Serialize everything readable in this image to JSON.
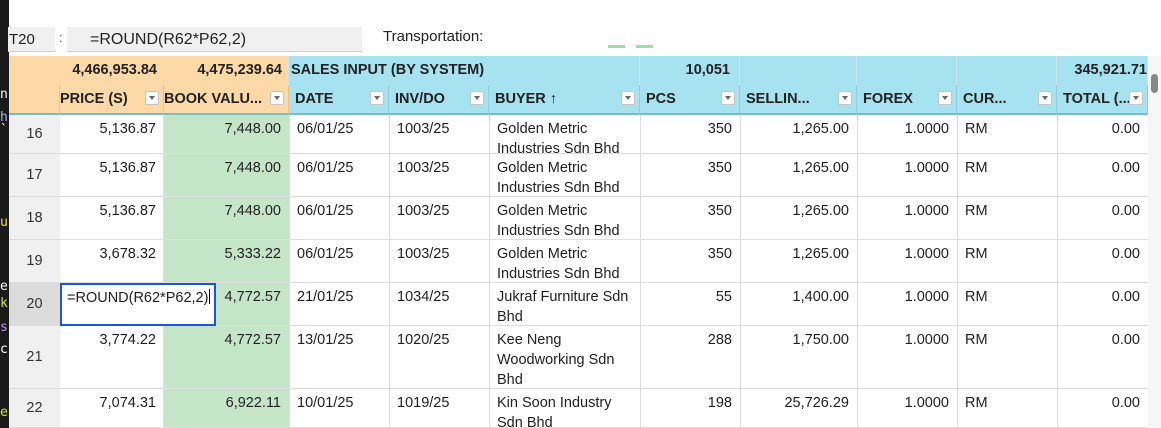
{
  "left_strip": [
    {
      "text": "n",
      "color": "#ffffff"
    },
    {
      "text": "h",
      "color": "#9ab8ff"
    },
    {
      "text": "`",
      "color": "#ffffff"
    },
    {
      "text": "u",
      "color": "#f4e04d"
    },
    {
      "text": "e",
      "color": "#ffffff"
    },
    {
      "text": "k",
      "color": "#c5f000"
    },
    {
      "text": "s",
      "color": "#c98bff"
    },
    {
      "text": "c",
      "color": "#ffffff"
    },
    {
      "text": "e",
      "color": "#c5f000"
    }
  ],
  "toolbar": {
    "name_box": "T20",
    "separator": ":",
    "formula": "=ROUND(R62*P62,2)",
    "transport_label": "Transportation:"
  },
  "summary": {
    "price_total": "4,466,953.84",
    "book_total": "4,475,239.64",
    "section_title": "SALES INPUT (BY SYSTEM)",
    "pcs_total": "10,051",
    "grand_total": "345,921.71"
  },
  "headers": [
    {
      "label": "PRICE (S)"
    },
    {
      "label": "BOOK VALU..."
    },
    {
      "label": "DATE"
    },
    {
      "label": "INV/DO"
    },
    {
      "label": "BUYER ↑"
    },
    {
      "label": "PCS"
    },
    {
      "label": "SELLIN..."
    },
    {
      "label": "FOREX"
    },
    {
      "label": "CUR..."
    },
    {
      "label": "TOTAL (..."
    }
  ],
  "rows": [
    {
      "row": "16",
      "price": "5,136.87",
      "book": "7,448.00",
      "date": "06/01/25",
      "inv": "1003/25",
      "buyer": [
        "Golden Metric",
        "Industries Sdn Bhd"
      ],
      "pcs": "350",
      "selling": "1,265.00",
      "forex": "1.0000",
      "currency": "RM",
      "total": "0.00"
    },
    {
      "row": "17",
      "price": "5,136.87",
      "book": "7,448.00",
      "date": "06/01/25",
      "inv": "1003/25",
      "buyer": [
        "Golden Metric",
        "Industries Sdn Bhd"
      ],
      "pcs": "350",
      "selling": "1,265.00",
      "forex": "1.0000",
      "currency": "RM",
      "total": "0.00"
    },
    {
      "row": "18",
      "price": "5,136.87",
      "book": "7,448.00",
      "date": "06/01/25",
      "inv": "1003/25",
      "buyer": [
        "Golden Metric",
        "Industries Sdn Bhd"
      ],
      "pcs": "350",
      "selling": "1,265.00",
      "forex": "1.0000",
      "currency": "RM",
      "total": "0.00"
    },
    {
      "row": "19",
      "price": "3,678.32",
      "book": "5,333.22",
      "date": "06/01/25",
      "inv": "1003/25",
      "buyer": [
        "Golden Metric",
        "Industries Sdn Bhd"
      ],
      "pcs": "350",
      "selling": "1,265.00",
      "forex": "1.0000",
      "currency": "RM",
      "total": "0.00"
    },
    {
      "row": "20",
      "price": "",
      "book": "4,772.57",
      "date": "21/01/25",
      "inv": "1034/25",
      "buyer": [
        "Jukraf Furniture Sdn",
        "Bhd"
      ],
      "pcs": "55",
      "selling": "1,400.00",
      "forex": "1.0000",
      "currency": "RM",
      "total": "0.00"
    },
    {
      "row": "21",
      "price": "3,774.22",
      "book": "4,772.57",
      "date": "13/01/25",
      "inv": "1020/25",
      "buyer": [
        "Kee Neng",
        "Woodworking Sdn",
        "Bhd"
      ],
      "pcs": "288",
      "selling": "1,750.00",
      "forex": "1.0000",
      "currency": "RM",
      "total": "0.00"
    },
    {
      "row": "22",
      "price": "7,074.31",
      "book": "6,922.11",
      "date": "10/01/25",
      "inv": "1019/25",
      "buyer": [
        "Kin Soon Industry",
        "Sdn Bhd"
      ],
      "pcs": "198",
      "selling": "25,726.29",
      "forex": "1.0000",
      "currency": "RM",
      "total": "0.00"
    }
  ],
  "active_cell": {
    "row": "20",
    "content": "=ROUND(R62*P62,2)"
  }
}
